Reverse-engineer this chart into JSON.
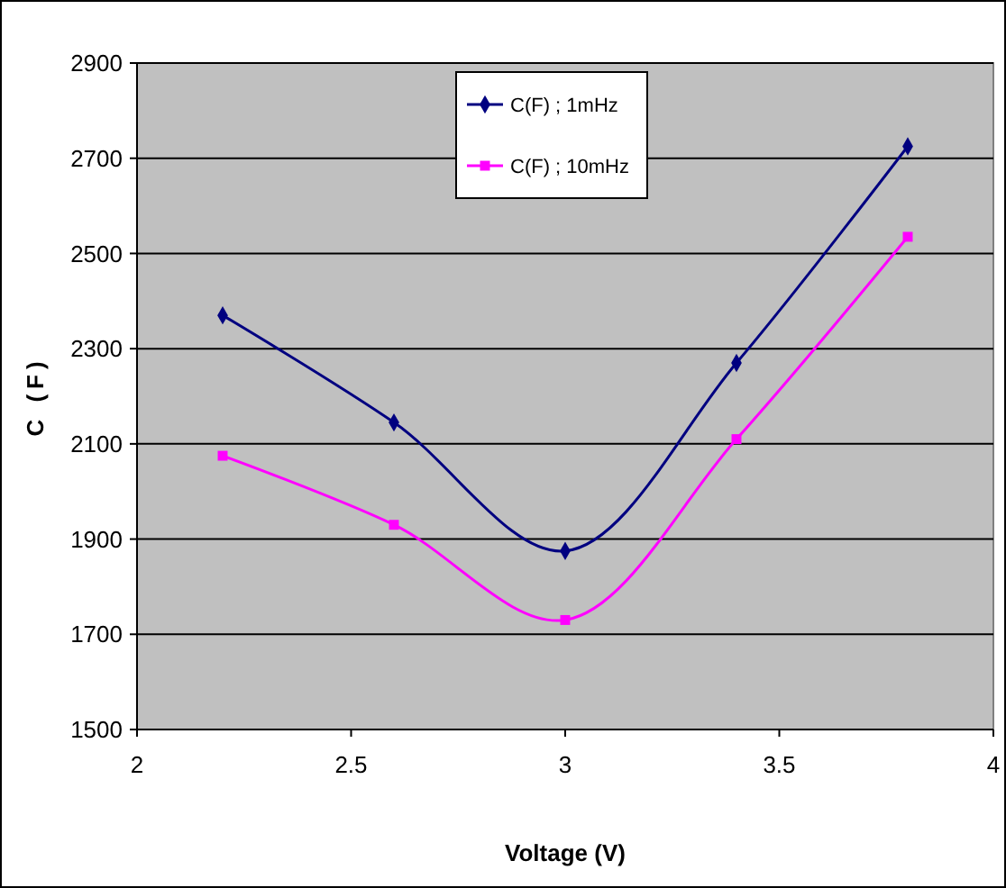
{
  "chart_data": {
    "type": "line",
    "xlabel": "Voltage (V)",
    "ylabel": "C (F)",
    "x": [
      2.2,
      2.6,
      3.0,
      3.4,
      3.8
    ],
    "series": [
      {
        "name": "C(F) ; 1mHz",
        "color": "#000080",
        "marker": "diamond",
        "values": [
          2370,
          2145,
          1875,
          2270,
          2725
        ]
      },
      {
        "name": "C(F) ; 10mHz",
        "color": "#ff00ff",
        "marker": "square",
        "values": [
          2075,
          1930,
          1730,
          2110,
          2535
        ]
      }
    ],
    "xlim": [
      2,
      4
    ],
    "xticks": [
      2,
      2.5,
      3,
      3.5,
      4
    ],
    "ylim": [
      1500,
      2900
    ],
    "yticks": [
      1500,
      1700,
      1900,
      2100,
      2300,
      2500,
      2700,
      2900
    ],
    "grid": "y",
    "legend": "top"
  }
}
